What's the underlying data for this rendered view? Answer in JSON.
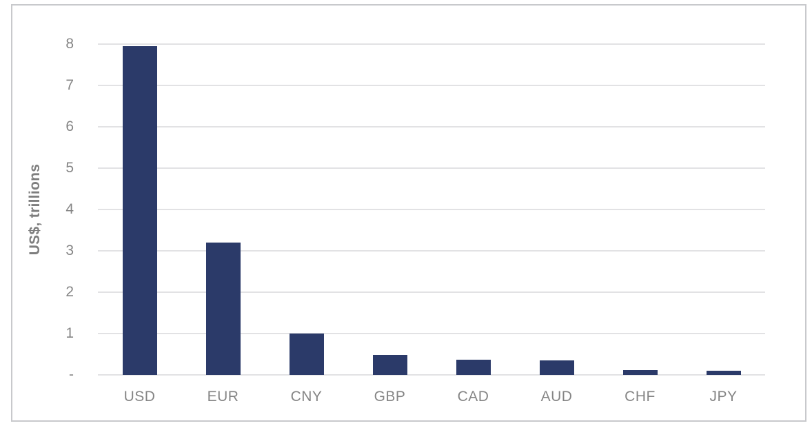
{
  "figure": {
    "frame_color": "#c8c9cc",
    "background_color": "#ffffff"
  },
  "chart_data": {
    "type": "bar",
    "title": "",
    "xlabel": "",
    "ylabel": "US$, trillions",
    "categories": [
      "USD",
      "EUR",
      "CNY",
      "GBP",
      "CAD",
      "AUD",
      "CHF",
      "JPY"
    ],
    "values": [
      7.95,
      3.2,
      1.0,
      0.48,
      0.37,
      0.35,
      0.11,
      0.1
    ],
    "ylim": [
      0,
      8
    ],
    "y_ticks": [
      {
        "value": 0,
        "label": "-"
      },
      {
        "value": 1,
        "label": "1"
      },
      {
        "value": 2,
        "label": "2"
      },
      {
        "value": 3,
        "label": "3"
      },
      {
        "value": 4,
        "label": "4"
      },
      {
        "value": 5,
        "label": "5"
      },
      {
        "value": 6,
        "label": "6"
      },
      {
        "value": 7,
        "label": "7"
      },
      {
        "value": 8,
        "label": "8"
      }
    ],
    "grid": true,
    "legend": false,
    "bar_color": "#2b3a69",
    "gridline_color": "#e2e2e4",
    "tick_label_color": "#858585",
    "axis_title_color": "#7e7e7e"
  }
}
